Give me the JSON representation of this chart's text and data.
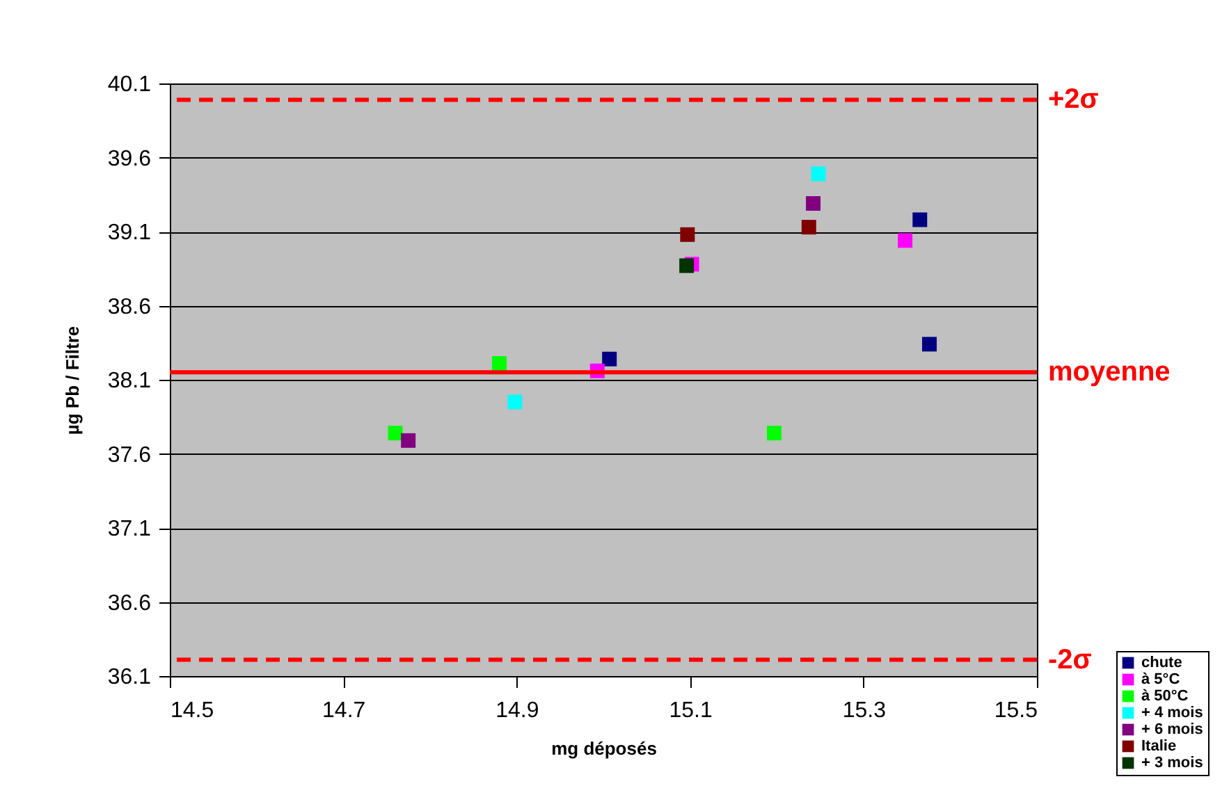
{
  "chart_data": {
    "type": "scatter",
    "xlabel": "mg déposés",
    "ylabel": "µg Pb / Filtre",
    "xlim": [
      14.5,
      15.5
    ],
    "xticks": [
      14.5,
      14.7,
      14.9,
      15.1,
      15.3,
      15.5
    ],
    "ylim": [
      36.1,
      40.1
    ],
    "yticks": [
      36.1,
      36.6,
      37.1,
      37.6,
      38.1,
      38.6,
      39.1,
      39.6,
      40.1
    ],
    "grid": "y",
    "legend": "bottom right",
    "marker": "square",
    "series": [
      {
        "name": "chute",
        "color": "#000080",
        "x": [
          15.365,
          15.376,
          15.007
        ],
        "values": [
          39.18,
          38.34,
          38.24
        ]
      },
      {
        "name": "à 5°C",
        "color": "#ff00ff",
        "x": [
          15.348,
          15.102,
          14.993
        ],
        "values": [
          39.04,
          38.88,
          38.16
        ]
      },
      {
        "name": "à 50°C",
        "color": "#00ff00",
        "x": [
          14.88,
          14.76,
          15.197
        ],
        "values": [
          38.21,
          37.74,
          37.74
        ]
      },
      {
        "name": "+ 4 mois",
        "color": "#00ffff",
        "x": [
          15.248,
          14.898
        ],
        "values": [
          39.49,
          37.95
        ]
      },
      {
        "name": "+ 6 mois",
        "color": "#800080",
        "x": [
          15.242,
          14.775
        ],
        "values": [
          39.29,
          37.69
        ]
      },
      {
        "name": "Italie",
        "color": "#800000",
        "x": [
          15.097,
          15.237
        ],
        "values": [
          39.08,
          39.13
        ]
      },
      {
        "name": "+ 3 mois",
        "color": "#003300",
        "x": [
          15.096
        ],
        "values": [
          38.87
        ]
      }
    ],
    "ref_lines": [
      {
        "axis": "y",
        "value": 39.99,
        "label": "+2σ",
        "color": "#ff0000",
        "line_style": "dashed"
      },
      {
        "axis": "y",
        "value": 38.15,
        "label": "moyenne",
        "color": "#ff0000",
        "line_style": "solid"
      },
      {
        "axis": "y",
        "value": 36.21,
        "label": "-2σ",
        "color": "#ff0000",
        "line_style": "dashed"
      }
    ]
  }
}
